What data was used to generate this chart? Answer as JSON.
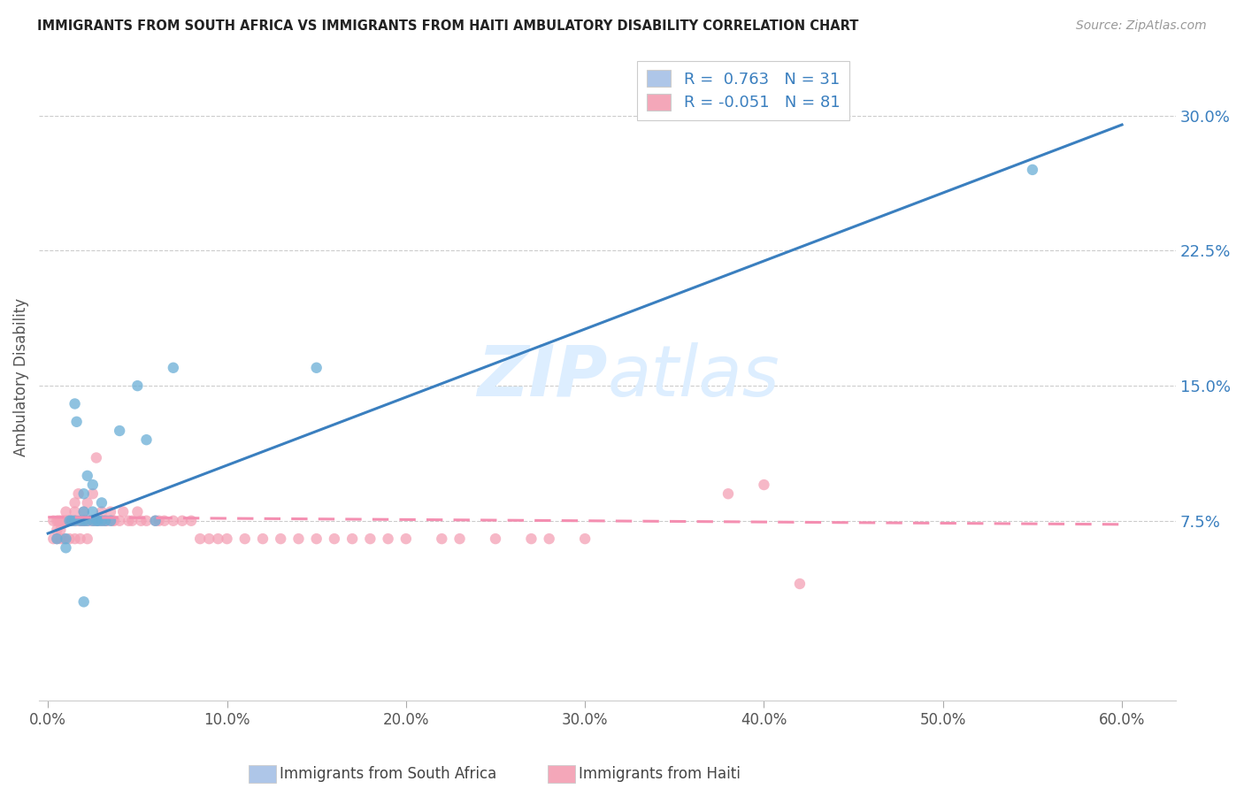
{
  "title": "IMMIGRANTS FROM SOUTH AFRICA VS IMMIGRANTS FROM HAITI AMBULATORY DISABILITY CORRELATION CHART",
  "source": "Source: ZipAtlas.com",
  "ylabel": "Ambulatory Disability",
  "xlabel_ticks": [
    "0.0%",
    "10.0%",
    "20.0%",
    "30.0%",
    "40.0%",
    "50.0%",
    "60.0%"
  ],
  "xlabel_vals": [
    0.0,
    0.1,
    0.2,
    0.3,
    0.4,
    0.5,
    0.6
  ],
  "ytick_labels": [
    "7.5%",
    "15.0%",
    "22.5%",
    "30.0%"
  ],
  "ytick_vals": [
    0.075,
    0.15,
    0.225,
    0.3
  ],
  "xlim": [
    -0.005,
    0.63
  ],
  "ylim": [
    -0.025,
    0.335
  ],
  "legend_entries": [
    {
      "label": "R =  0.763   N = 31",
      "color": "#aec6e8"
    },
    {
      "label": "R = -0.051   N = 81",
      "color": "#f4a7b9"
    }
  ],
  "series1_color": "#6aaed6",
  "series2_color": "#f4a0b5",
  "line1_color": "#3a7fbf",
  "line2_color": "#f48fb1",
  "watermark_zip": "ZIP",
  "watermark_atlas": "atlas",
  "watermark_color": "#ddeeff",
  "south_africa_x": [
    0.005,
    0.01,
    0.01,
    0.012,
    0.013,
    0.015,
    0.015,
    0.016,
    0.018,
    0.02,
    0.02,
    0.02,
    0.022,
    0.022,
    0.025,
    0.025,
    0.025,
    0.027,
    0.028,
    0.03,
    0.03,
    0.032,
    0.035,
    0.04,
    0.05,
    0.055,
    0.06,
    0.07,
    0.15,
    0.55,
    0.02
  ],
  "south_africa_y": [
    0.065,
    0.06,
    0.065,
    0.075,
    0.075,
    0.075,
    0.14,
    0.13,
    0.075,
    0.075,
    0.08,
    0.09,
    0.1,
    0.075,
    0.08,
    0.095,
    0.075,
    0.075,
    0.075,
    0.075,
    0.085,
    0.075,
    0.075,
    0.125,
    0.15,
    0.12,
    0.075,
    0.16,
    0.16,
    0.27,
    0.03
  ],
  "haiti_x": [
    0.003,
    0.005,
    0.005,
    0.006,
    0.007,
    0.007,
    0.008,
    0.009,
    0.01,
    0.01,
    0.011,
    0.012,
    0.013,
    0.014,
    0.015,
    0.015,
    0.016,
    0.017,
    0.018,
    0.019,
    0.02,
    0.02,
    0.021,
    0.022,
    0.023,
    0.025,
    0.025,
    0.026,
    0.027,
    0.028,
    0.03,
    0.03,
    0.032,
    0.033,
    0.035,
    0.036,
    0.037,
    0.04,
    0.042,
    0.045,
    0.047,
    0.05,
    0.052,
    0.055,
    0.06,
    0.062,
    0.065,
    0.07,
    0.075,
    0.08,
    0.085,
    0.09,
    0.095,
    0.1,
    0.11,
    0.12,
    0.13,
    0.14,
    0.15,
    0.16,
    0.17,
    0.18,
    0.19,
    0.2,
    0.22,
    0.23,
    0.25,
    0.27,
    0.28,
    0.3,
    0.003,
    0.005,
    0.007,
    0.009,
    0.012,
    0.015,
    0.018,
    0.022,
    0.38,
    0.4,
    0.42
  ],
  "haiti_y": [
    0.075,
    0.075,
    0.07,
    0.075,
    0.075,
    0.07,
    0.075,
    0.075,
    0.075,
    0.08,
    0.075,
    0.075,
    0.075,
    0.075,
    0.08,
    0.085,
    0.075,
    0.09,
    0.075,
    0.075,
    0.075,
    0.08,
    0.075,
    0.085,
    0.075,
    0.09,
    0.075,
    0.075,
    0.11,
    0.075,
    0.075,
    0.08,
    0.075,
    0.075,
    0.08,
    0.075,
    0.075,
    0.075,
    0.08,
    0.075,
    0.075,
    0.08,
    0.075,
    0.075,
    0.075,
    0.075,
    0.075,
    0.075,
    0.075,
    0.075,
    0.065,
    0.065,
    0.065,
    0.065,
    0.065,
    0.065,
    0.065,
    0.065,
    0.065,
    0.065,
    0.065,
    0.065,
    0.065,
    0.065,
    0.065,
    0.065,
    0.065,
    0.065,
    0.065,
    0.065,
    0.065,
    0.065,
    0.065,
    0.065,
    0.065,
    0.065,
    0.065,
    0.065,
    0.09,
    0.095,
    0.04
  ],
  "line1_x0": 0.0,
  "line1_y0": 0.068,
  "line1_x1": 0.6,
  "line1_y1": 0.295,
  "line2_x0": 0.0,
  "line2_y0": 0.077,
  "line2_x1": 0.6,
  "line2_y1": 0.073
}
